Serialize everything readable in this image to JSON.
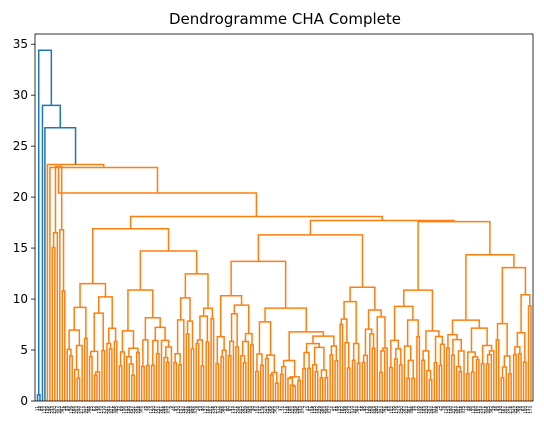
{
  "chart_data": {
    "type": "dendrogram",
    "title": "Dendrogramme CHA Complete",
    "xlabel": "",
    "ylabel": "",
    "ylim": [
      0,
      36
    ],
    "yticks": [
      0,
      5,
      10,
      15,
      20,
      25,
      30,
      35
    ],
    "grid": false,
    "colors": {
      "above_threshold": "#1f77b4",
      "cluster": "#ff7f0e",
      "axes": "#000000"
    },
    "merges": [
      {
        "name": "root",
        "height": 34.4
      },
      {
        "name": "second",
        "height": 29.0
      },
      {
        "name": "third",
        "height": 26.8
      },
      {
        "name": "orange-top",
        "height": 23.2
      },
      {
        "name": "orange-left-pair",
        "height": 23.0
      },
      {
        "name": "orange-main",
        "height": 20.4
      },
      {
        "name": "big-cluster",
        "height": 18.1
      },
      {
        "name": "right-group",
        "height": 17.6
      },
      {
        "name": "left-group",
        "height": 16.9
      },
      {
        "name": "mid-group",
        "height": 16.3
      }
    ]
  }
}
